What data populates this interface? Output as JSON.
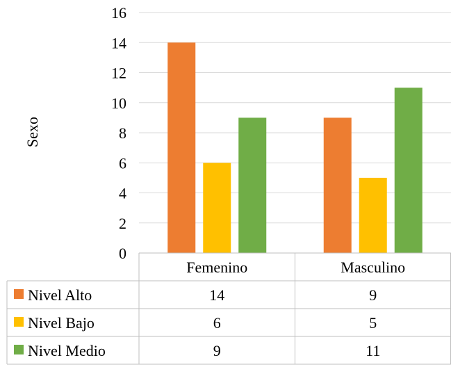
{
  "chart_data": {
    "type": "bar",
    "ylabel": "Sexo",
    "ylim": [
      0,
      16
    ],
    "yticks": [
      0,
      2,
      4,
      6,
      8,
      10,
      12,
      14,
      16
    ],
    "grid": true,
    "categories": [
      "Femenino",
      "Masculino"
    ],
    "series": [
      {
        "name": "Nivel Alto",
        "values": [
          14,
          9
        ],
        "color": "#ED7D31"
      },
      {
        "name": "Nivel Bajo",
        "values": [
          6,
          5
        ],
        "color": "#FFC000"
      },
      {
        "name": "Nivel Medio",
        "values": [
          9,
          11
        ],
        "color": "#70AD47"
      }
    ],
    "legend": "data-table"
  }
}
